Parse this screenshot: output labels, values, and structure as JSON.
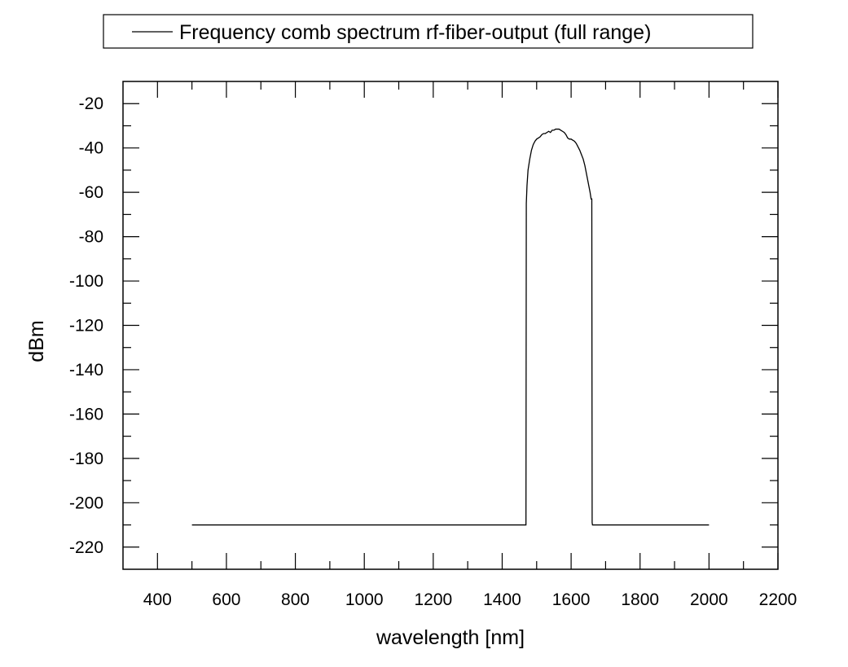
{
  "chart_data": {
    "type": "line",
    "title": "",
    "xlabel": "wavelength [nm]",
    "ylabel": "dBm",
    "xlim": [
      300,
      2200
    ],
    "ylim": [
      -230,
      -10
    ],
    "x_ticks": [
      400,
      600,
      800,
      1000,
      1200,
      1400,
      1600,
      1800,
      2000,
      2200
    ],
    "y_ticks": [
      -20,
      -40,
      -60,
      -80,
      -100,
      -120,
      -140,
      -160,
      -180,
      -200,
      -220
    ],
    "x_tick_labels": [
      "400",
      "600",
      "800",
      "1000",
      "1200",
      "1400",
      "1600",
      "1800",
      "2000",
      "2200"
    ],
    "y_tick_labels": [
      "-20",
      "-40",
      "-60",
      "-80",
      "-100",
      "-120",
      "-140",
      "-160",
      "-180",
      "-200",
      "-220"
    ],
    "grid": false,
    "legend": {
      "placement": "top",
      "entries": [
        "Frequency comb spectrum rf-fiber-output (full range)"
      ]
    },
    "series": [
      {
        "name": "Frequency comb spectrum rf-fiber-output (full range)",
        "color": "#000000",
        "x": [
          500,
          1469,
          1470,
          1472,
          1475,
          1480,
          1485,
          1490,
          1495,
          1500,
          1505,
          1510,
          1515,
          1520,
          1525,
          1530,
          1535,
          1540,
          1545,
          1550,
          1555,
          1560,
          1565,
          1570,
          1575,
          1580,
          1585,
          1590,
          1595,
          1600,
          1605,
          1610,
          1615,
          1620,
          1625,
          1630,
          1635,
          1640,
          1645,
          1650,
          1655,
          1658,
          1660,
          1661,
          1662,
          2000
        ],
        "y": [
          -210,
          -210,
          -65,
          -57,
          -50,
          -45,
          -41,
          -38.5,
          -37,
          -36,
          -35.5,
          -35,
          -34,
          -33.5,
          -33.5,
          -33,
          -32.5,
          -33,
          -32,
          -32,
          -31.5,
          -31.5,
          -31.5,
          -32,
          -32.5,
          -33,
          -34,
          -35.5,
          -36,
          -36,
          -36.5,
          -37,
          -38,
          -39.5,
          -41,
          -43,
          -45,
          -48,
          -52,
          -56,
          -60,
          -63,
          -63,
          -209,
          -210,
          -210
        ]
      }
    ]
  }
}
